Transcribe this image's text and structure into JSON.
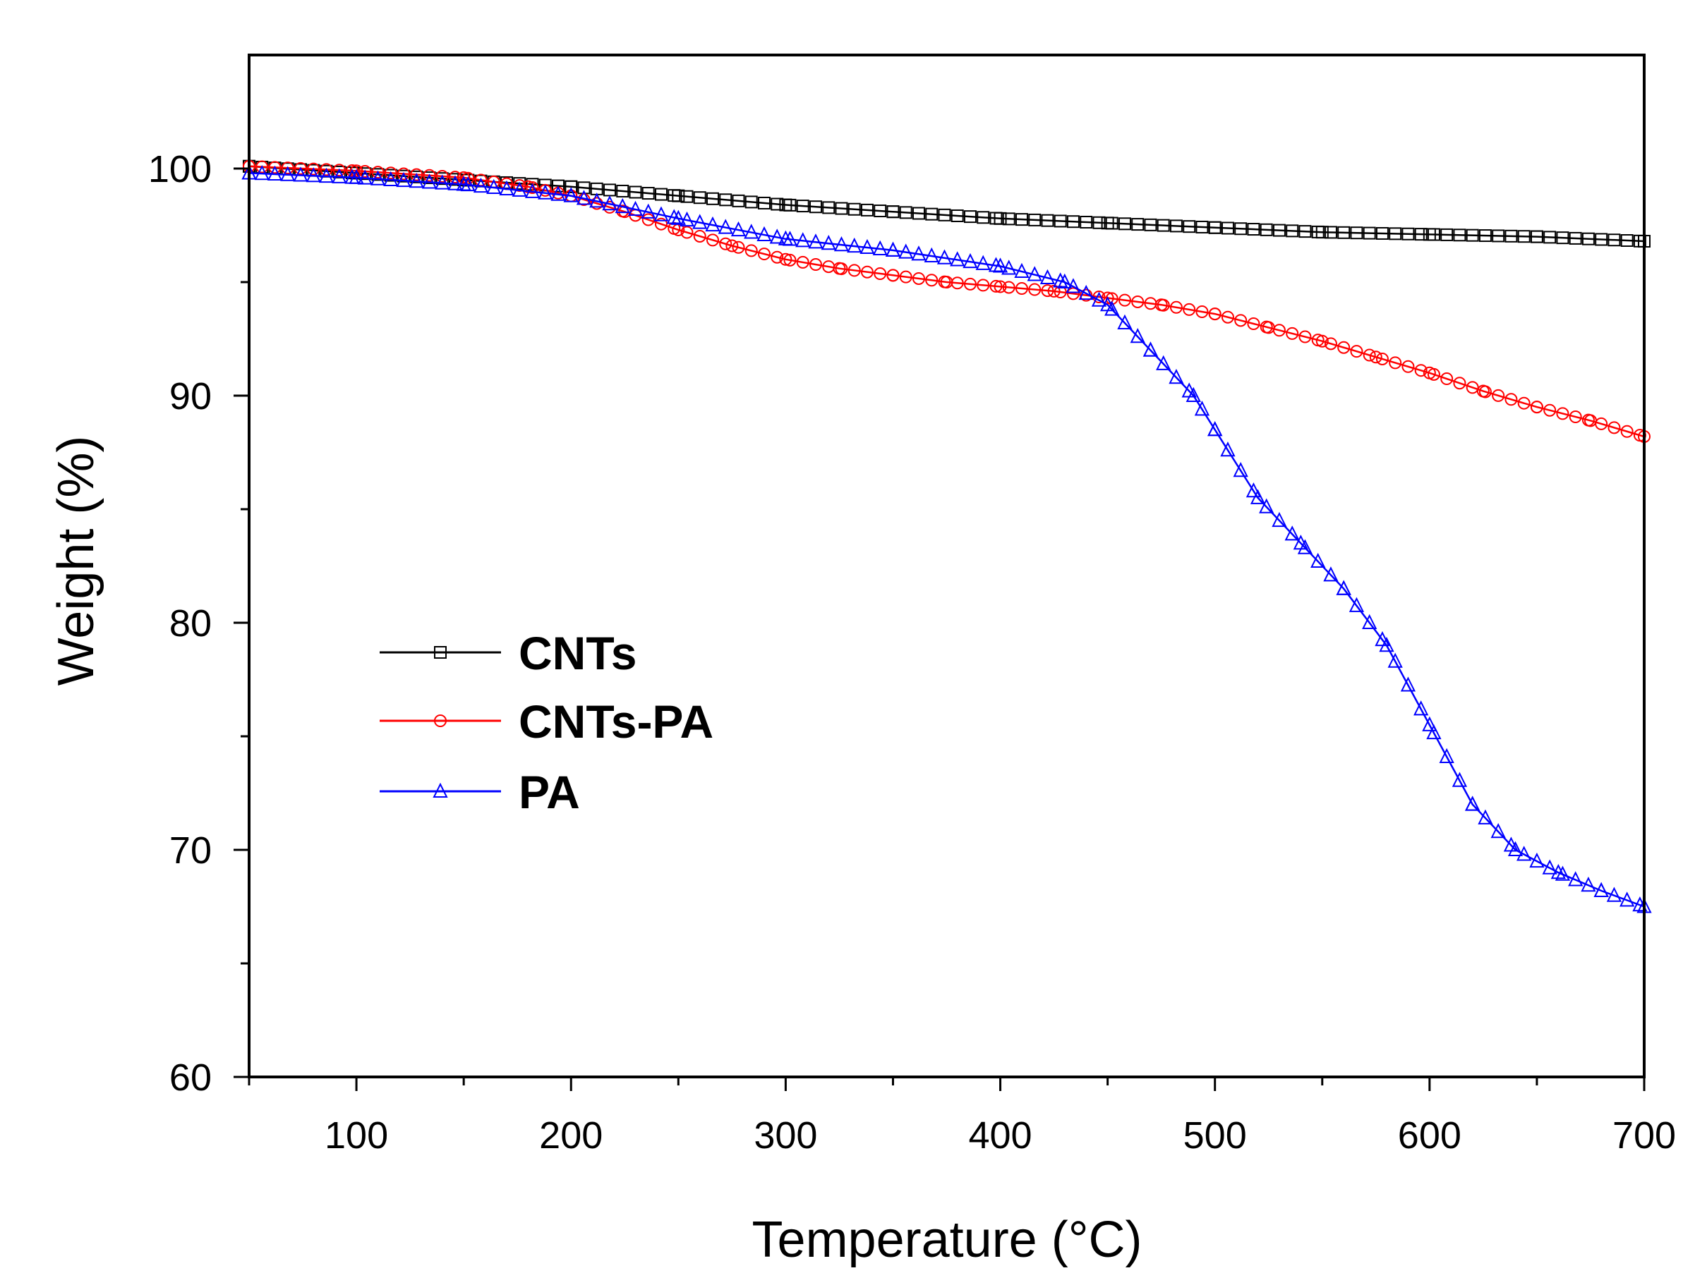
{
  "chart_data": {
    "type": "line",
    "title": "",
    "xlabel": "Temperature (°C)",
    "ylabel": "Weight (%)",
    "xlim": [
      50,
      700
    ],
    "ylim": [
      60,
      105
    ],
    "xticks": [
      100,
      200,
      300,
      400,
      500,
      600,
      700
    ],
    "yticks": [
      60,
      70,
      80,
      90,
      100
    ],
    "legend_position": "center-left",
    "series": [
      {
        "name": "CNTs",
        "color": "#000000",
        "marker": "square",
        "x": [
          50,
          100,
          150,
          200,
          250,
          300,
          350,
          400,
          450,
          500,
          550,
          600,
          650,
          700
        ],
        "y": [
          100.1,
          99.8,
          99.5,
          99.2,
          98.8,
          98.4,
          98.1,
          97.8,
          97.6,
          97.4,
          97.2,
          97.1,
          97.0,
          96.8
        ]
      },
      {
        "name": "CNTs-PA",
        "color": "#ff0000",
        "marker": "circle",
        "x": [
          50,
          100,
          150,
          180,
          200,
          225,
          250,
          275,
          300,
          325,
          350,
          375,
          400,
          425,
          450,
          475,
          500,
          525,
          550,
          575,
          600,
          625,
          650,
          675,
          700
        ],
        "y": [
          100.1,
          99.9,
          99.6,
          99.2,
          98.8,
          98.1,
          97.3,
          96.6,
          96.0,
          95.6,
          95.3,
          95.0,
          94.8,
          94.6,
          94.3,
          94.0,
          93.6,
          93.0,
          92.4,
          91.7,
          91.0,
          90.2,
          89.5,
          88.9,
          88.2
        ]
      },
      {
        "name": "PA",
        "color": "#0000ff",
        "marker": "triangle",
        "x": [
          50,
          100,
          150,
          200,
          250,
          300,
          350,
          400,
          430,
          450,
          470,
          490,
          500,
          520,
          540,
          560,
          580,
          600,
          620,
          640,
          660,
          680,
          700
        ],
        "y": [
          99.8,
          99.6,
          99.3,
          98.8,
          97.8,
          96.9,
          96.4,
          95.7,
          95.0,
          94.0,
          92.0,
          90.0,
          88.5,
          85.5,
          83.5,
          81.5,
          79.0,
          75.5,
          72.0,
          70.0,
          69.0,
          68.2,
          67.5
        ]
      }
    ]
  }
}
